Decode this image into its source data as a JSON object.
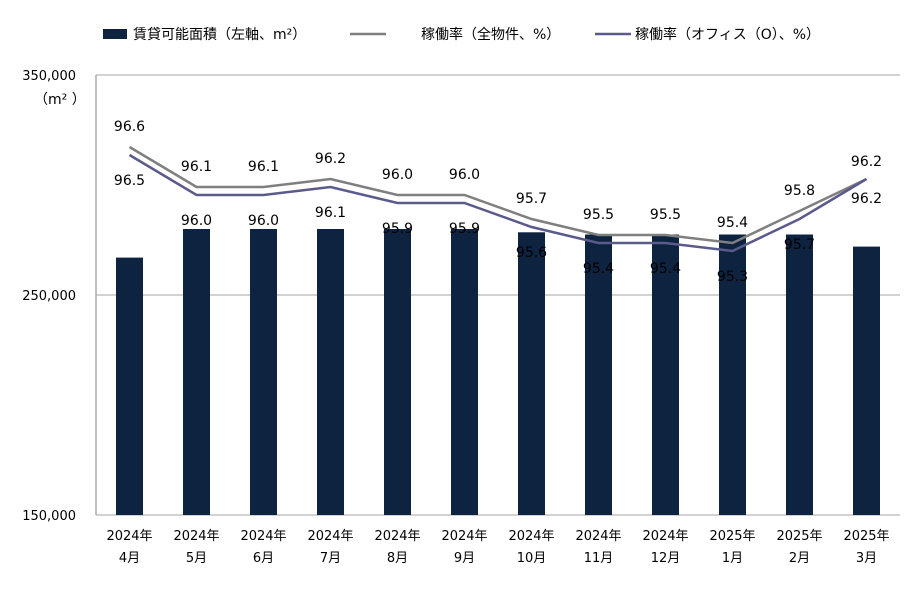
{
  "chart_data": {
    "type": "bar+line",
    "categories": [
      [
        "2024年",
        "4月"
      ],
      [
        "2024年",
        "5月"
      ],
      [
        "2024年",
        "6月"
      ],
      [
        "2024年",
        "7月"
      ],
      [
        "2024年",
        "8月"
      ],
      [
        "2024年",
        "9月"
      ],
      [
        "2024年",
        "10月"
      ],
      [
        "2024年",
        "11月"
      ],
      [
        "2024年",
        "12月"
      ],
      [
        "2025年",
        "1月"
      ],
      [
        "2025年",
        "2月"
      ],
      [
        "2025年",
        "3月"
      ]
    ],
    "bar_series": {
      "name": "賃貸可能面積（左軸、m²）",
      "values": [
        267000,
        280000,
        280000,
        280000,
        280000,
        280000,
        278500,
        277500,
        277500,
        277500,
        277500,
        272000
      ],
      "color": "#0e2340"
    },
    "line_series": [
      {
        "name": "稼働率（全物件、%）",
        "values": [
          96.6,
          96.1,
          96.1,
          96.2,
          96.0,
          96.0,
          95.7,
          95.5,
          95.5,
          95.4,
          95.8,
          96.2
        ],
        "labels": [
          "96.6",
          "96.1",
          "96.1",
          "96.2",
          "96.0",
          "96.0",
          "95.7",
          "95.5",
          "95.5",
          "95.4",
          "95.8",
          "96.2"
        ],
        "color": "#7f7f7f"
      },
      {
        "name": "稼働率（オフィス（O）、%）",
        "values": [
          96.5,
          96.0,
          96.0,
          96.1,
          95.9,
          95.9,
          95.6,
          95.4,
          95.4,
          95.3,
          95.7,
          96.2
        ],
        "labels": [
          "96.5",
          "96.0",
          "96.0",
          "96.1",
          "95.9",
          "95.9",
          "95.6",
          "95.4",
          "95.4",
          "95.3",
          "95.7",
          "96.2"
        ],
        "color": "#5a5a8c"
      }
    ],
    "y_axis": {
      "ylim": [
        150000,
        350000
      ],
      "ticks": [
        "150,000",
        "250,000",
        "350,000"
      ],
      "tick_values": [
        150000,
        250000,
        350000
      ],
      "unit": "（m² ）"
    },
    "y2_range": [
      92.0,
      97.5
    ],
    "grid": true,
    "legend_position": "top"
  }
}
